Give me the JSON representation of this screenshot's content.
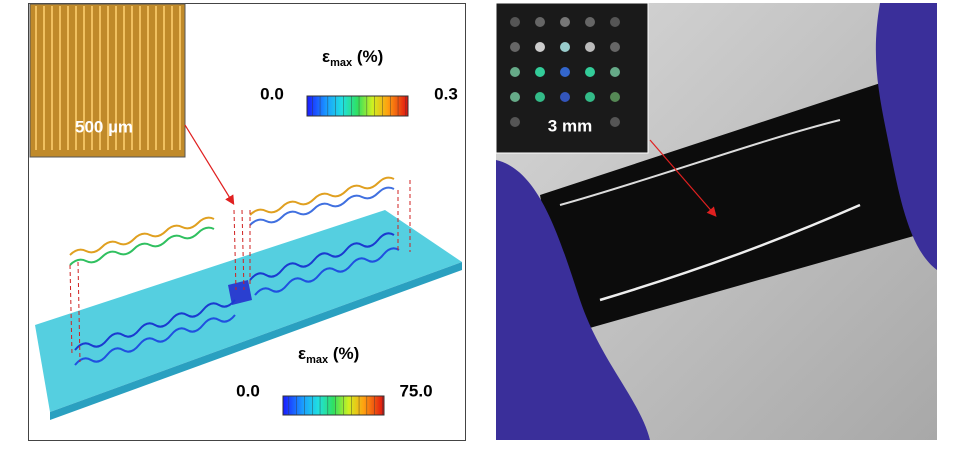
{
  "left_panel": {
    "inset_label": "500 µm",
    "top_colorbar": {
      "symbol": "ε",
      "subscript": "max",
      "unit": "(%)",
      "min_label": "0.0",
      "max_label": "0.3"
    },
    "bottom_colorbar": {
      "symbol": "ε",
      "subscript": "max",
      "unit": "(%)",
      "min_label": "0.0",
      "max_label": "75.0"
    }
  },
  "right_panel": {
    "inset_label": "3 mm"
  }
}
